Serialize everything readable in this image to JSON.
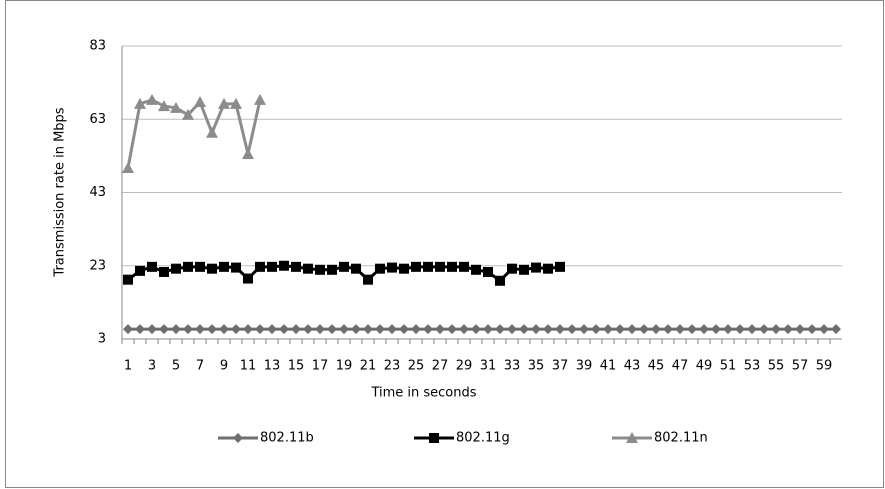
{
  "chart_data": {
    "type": "line",
    "ylabel": "Transmission rate in Mbps",
    "xlabel": "Time in seconds",
    "categories": [
      "1",
      null,
      "3",
      null,
      "5",
      null,
      "7",
      null,
      "9",
      null,
      "11",
      null,
      "13",
      null,
      "15",
      null,
      "17",
      null,
      "19",
      null,
      "21",
      null,
      "23",
      null,
      "25",
      null,
      "27",
      null,
      "29",
      null,
      "31",
      null,
      "33",
      null,
      "35",
      null,
      "37",
      null,
      "39",
      null,
      "41",
      null,
      "43",
      null,
      "45",
      null,
      "47",
      null,
      "49",
      null,
      "51",
      null,
      "53",
      null,
      "55",
      null,
      "57",
      null,
      "59",
      null
    ],
    "series": [
      {
        "name": "802.11b",
        "color": "#6e6e6e",
        "marker": "diamond",
        "values": [
          5.7,
          5.7,
          5.7,
          5.7,
          5.7,
          5.7,
          5.7,
          5.7,
          5.7,
          5.7,
          5.7,
          5.7,
          5.7,
          5.7,
          5.7,
          5.7,
          5.7,
          5.7,
          5.7,
          5.7,
          5.7,
          5.7,
          5.7,
          5.7,
          5.7,
          5.7,
          5.7,
          5.7,
          5.7,
          5.7,
          5.7,
          5.7,
          5.7,
          5.7,
          5.7,
          5.7,
          5.7,
          5.7,
          5.7,
          5.7,
          5.7,
          5.7,
          5.7,
          5.7,
          5.7,
          5.7,
          5.7,
          5.7,
          5.7,
          5.7,
          5.7,
          5.7,
          5.7,
          5.7,
          5.7,
          5.7,
          5.7,
          5.7,
          5.7,
          5.7
        ]
      },
      {
        "name": "802.11g",
        "color": "#000000",
        "marker": "square",
        "values": [
          19.2,
          21.6,
          22.7,
          21.3,
          22.2,
          22.7,
          22.7,
          22.2,
          22.7,
          22.5,
          19.5,
          22.7,
          22.7,
          23,
          22.7,
          22.2,
          21.9,
          21.9,
          22.7,
          22.2,
          19.2,
          22.2,
          22.5,
          22.2,
          22.7,
          22.7,
          22.7,
          22.7,
          22.7,
          21.9,
          21.3,
          18.9,
          22.2,
          21.9,
          22.5,
          22.2,
          22.7,
          null,
          null,
          null,
          null,
          null,
          null,
          null,
          null,
          null,
          null,
          null,
          null,
          null,
          null,
          null,
          null,
          null,
          null,
          null,
          null,
          null,
          null,
          null
        ]
      },
      {
        "name": "802.11n",
        "color": "#8c8c8c",
        "marker": "triangle",
        "values": [
          49.7,
          67.2,
          68.3,
          66.6,
          66.1,
          64.2,
          67.7,
          59.3,
          67.2,
          67.2,
          53.5,
          68.3,
          null,
          null,
          null,
          null,
          null,
          null,
          null,
          null,
          null,
          null,
          null,
          null,
          null,
          null,
          null,
          null,
          null,
          null,
          null,
          null,
          null,
          null,
          null,
          null,
          null,
          null,
          null,
          null,
          null,
          null,
          null,
          null,
          null,
          null,
          null,
          null,
          null,
          null,
          null,
          null,
          null,
          null,
          null,
          null,
          null,
          null,
          null,
          null
        ]
      }
    ],
    "ylim": [
      3,
      83
    ],
    "yticks": [
      3,
      23,
      43,
      63,
      83
    ],
    "grid": true,
    "legend": "bottom"
  }
}
